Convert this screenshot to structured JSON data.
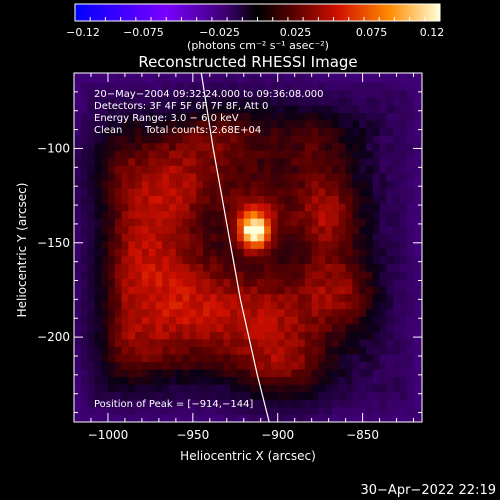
{
  "chart_data": {
    "type": "heatmap",
    "title": "Reconstructed RHESSI Image",
    "xlabel": "Heliocentric X (arcsec)",
    "ylabel": "Heliocentric Y (arcsec)",
    "xlim": [
      -1020,
      -815
    ],
    "ylim": [
      -245,
      -60
    ],
    "x_ticks": [
      -1000,
      -950,
      -900,
      -850
    ],
    "x_tick_labels": [
      "−1000",
      "−950",
      "−900",
      "−850"
    ],
    "y_ticks": [
      -100,
      -150,
      -200
    ],
    "y_tick_labels": [
      "−100",
      "−150",
      "−200"
    ],
    "colorbar": {
      "range": [
        -0.12,
        0.12
      ],
      "ticks": [
        -0.12,
        -0.075,
        -0.025,
        0.025,
        0.075,
        0.12
      ],
      "tick_labels": [
        "−0.12",
        "−0.075",
        "−0.025",
        "0.025",
        "0.075",
        "0.12"
      ],
      "units_label": "(photons cm⁻² s⁻¹ asec⁻²)"
    },
    "annotations": {
      "time_range": "20−May−2004 09:32:24.000 to 09:36:08.000",
      "detectors": "Detectors: 3F 4F 5F 6F 7F 8F, Att 0",
      "energy": "Energy Range: 3.0 − 6.0 keV",
      "algorithm": "Clean",
      "total_counts": "Total counts: 2.68E+04",
      "peak": "Position of Peak = [−914,−144]"
    },
    "peak": {
      "x": -914,
      "y": -144,
      "value": 0.12
    },
    "blobs": [
      {
        "x": -914,
        "y": -144,
        "amp": 0.1,
        "sigma": 6
      },
      {
        "x": -912,
        "y": -136,
        "amp": 0.05,
        "sigma": 12
      },
      {
        "x": -965,
        "y": -120,
        "amp": 0.05,
        "sigma": 20
      },
      {
        "x": -985,
        "y": -160,
        "amp": 0.045,
        "sigma": 22
      },
      {
        "x": -950,
        "y": -185,
        "amp": 0.05,
        "sigma": 22
      },
      {
        "x": -905,
        "y": -190,
        "amp": 0.045,
        "sigma": 22
      },
      {
        "x": -872,
        "y": -135,
        "amp": 0.05,
        "sigma": 14
      },
      {
        "x": -865,
        "y": -175,
        "amp": 0.045,
        "sigma": 16
      },
      {
        "x": -895,
        "y": -225,
        "amp": 0.035,
        "sigma": 18
      },
      {
        "x": -990,
        "y": -205,
        "amp": 0.035,
        "sigma": 18
      },
      {
        "x": -930,
        "y": -95,
        "amp": 0.035,
        "sigma": 20
      },
      {
        "x": -880,
        "y": -100,
        "amp": 0.03,
        "sigma": 18
      },
      {
        "x": -1005,
        "y": -110,
        "amp": 0.03,
        "sigma": 16
      }
    ],
    "limb_curve": [
      [
        -945,
        -60
      ],
      [
        -938,
        -100
      ],
      [
        -930,
        -140
      ],
      [
        -922,
        -180
      ],
      [
        -912,
        -220
      ],
      [
        -905,
        -245
      ]
    ]
  },
  "footer": {
    "date": "30−Apr−2022 22:19"
  }
}
